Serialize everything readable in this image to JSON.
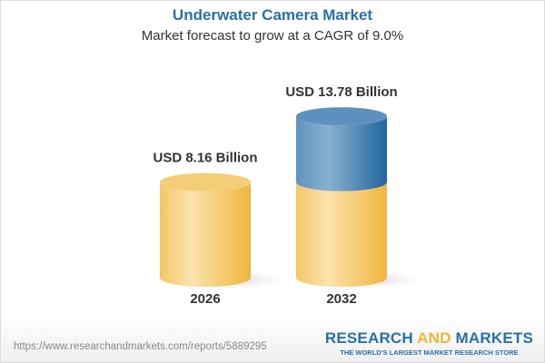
{
  "title": "Underwater Camera Market",
  "subtitle": "Market forecast to grow at a CAGR of 9.0%",
  "chart_data": {
    "type": "bar",
    "style": "3d-cylinder",
    "categories": [
      "2026",
      "2032"
    ],
    "values": [
      8.16,
      13.78
    ],
    "data_labels": [
      "USD 8.16 Billion",
      "USD 13.78 Billion"
    ],
    "colors": {
      "base": "#f2c45e",
      "growth": "#2f73a8"
    },
    "grid": false
  },
  "footer": {
    "url": "https://www.researchandmarkets.com/reports/5889295",
    "logo_part1": "RESEARCH ",
    "logo_part2": "AND",
    "logo_part3": " MARKETS",
    "tagline": "THE WORLD'S LARGEST MARKET RESEARCH STORE"
  }
}
